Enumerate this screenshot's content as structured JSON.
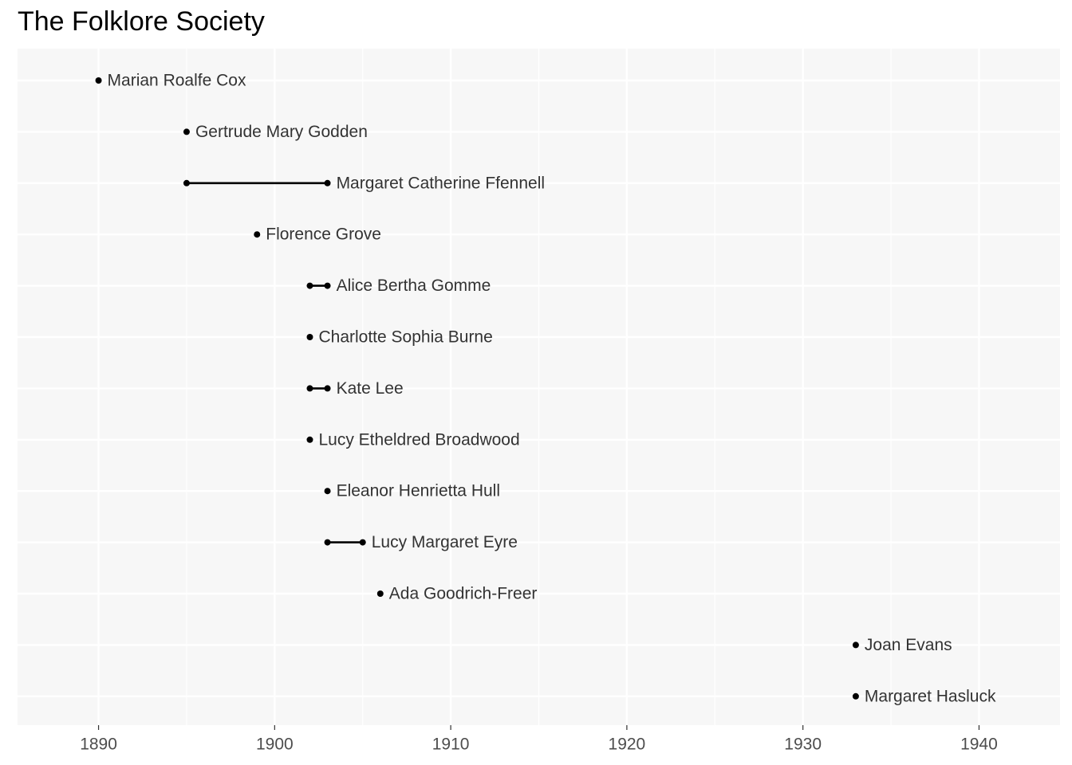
{
  "chart_data": {
    "type": "scatter",
    "title": "The Folklore Society",
    "xlabel": "",
    "ylabel": "",
    "xlim": [
      1885.4,
      1944.6
    ],
    "x_ticks": [
      1890,
      1900,
      1910,
      1920,
      1930,
      1940
    ],
    "x_tick_labels": [
      "1890",
      "1900",
      "1910",
      "1920",
      "1930",
      "1940"
    ],
    "grid": true,
    "legend": "none",
    "colors": {
      "panel_background": "#f7f7f7",
      "grid": "#ffffff",
      "marker": "#000000",
      "label_text": "#333333",
      "tick_text": "#4d4d4d"
    },
    "series": [
      {
        "name": "Marian Roalfe Cox",
        "start": 1890,
        "end": 1890
      },
      {
        "name": "Gertrude Mary Godden",
        "start": 1895,
        "end": 1895
      },
      {
        "name": "Margaret Catherine Ffennell",
        "start": 1895,
        "end": 1903
      },
      {
        "name": "Florence Grove",
        "start": 1899,
        "end": 1899
      },
      {
        "name": "Alice Bertha Gomme",
        "start": 1902,
        "end": 1903
      },
      {
        "name": "Charlotte Sophia Burne",
        "start": 1902,
        "end": 1902
      },
      {
        "name": "Kate Lee",
        "start": 1902,
        "end": 1903
      },
      {
        "name": "Lucy Etheldred Broadwood",
        "start": 1902,
        "end": 1902
      },
      {
        "name": "Eleanor Henrietta Hull",
        "start": 1903,
        "end": 1903
      },
      {
        "name": "Lucy Margaret Eyre",
        "start": 1903,
        "end": 1905
      },
      {
        "name": "Ada Goodrich-Freer",
        "start": 1906,
        "end": 1906
      },
      {
        "name": "Joan Evans",
        "start": 1933,
        "end": 1933
      },
      {
        "name": "Margaret Hasluck",
        "start": 1933,
        "end": 1933
      }
    ]
  }
}
